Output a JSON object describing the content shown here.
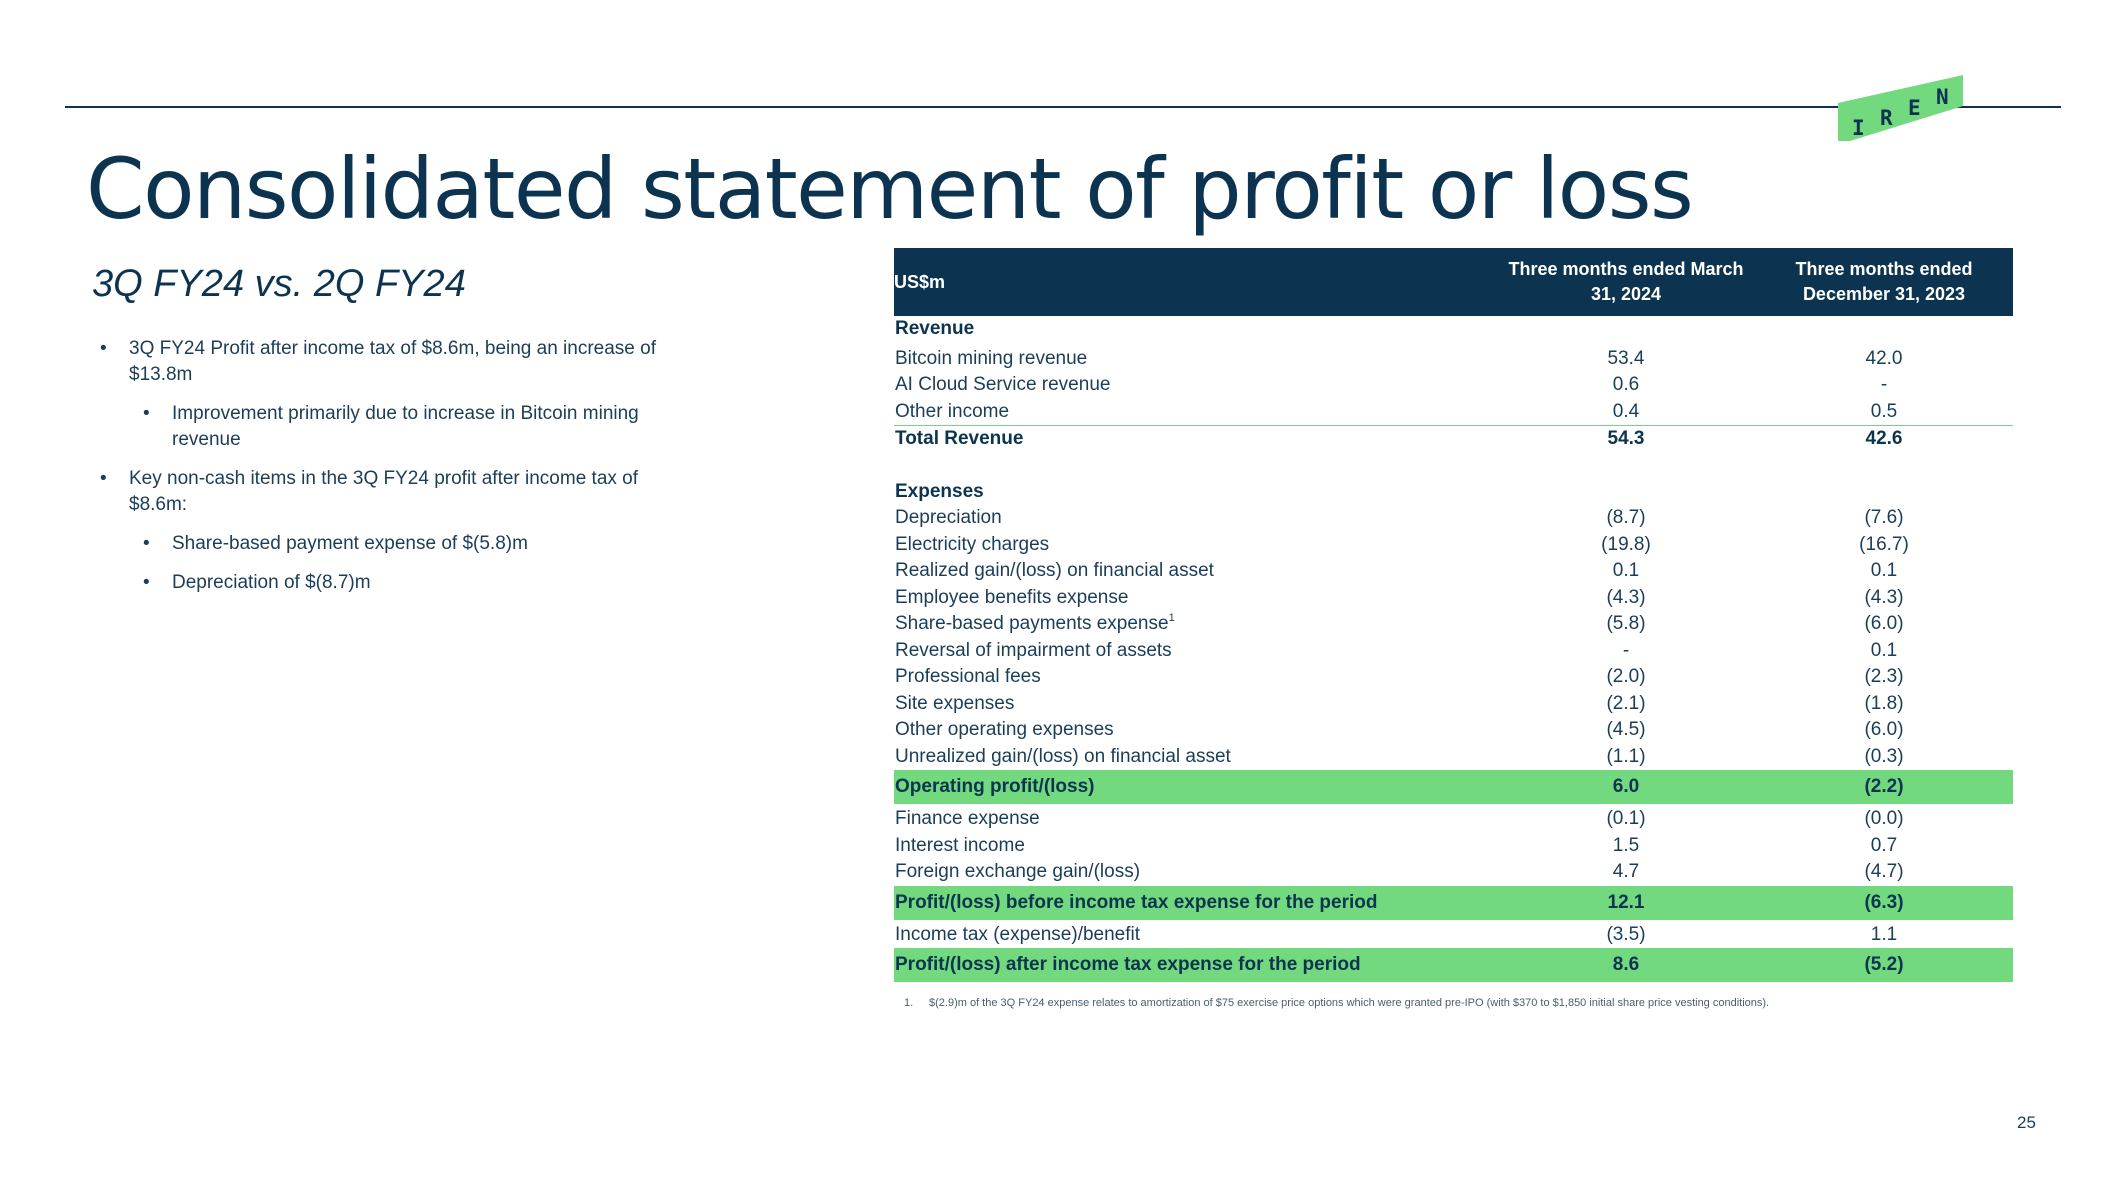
{
  "logo": {
    "letters": [
      "I",
      "R",
      "E",
      "N"
    ],
    "color": "#72d97e"
  },
  "title": "Consolidated statement of profit or loss",
  "subtitle": "3Q FY24 vs. 2Q FY24",
  "bullets": [
    {
      "text": "3Q FY24 Profit after income tax of $8.6m, being an increase of $13.8m"
    },
    {
      "text": "Improvement primarily due to increase in Bitcoin mining revenue"
    },
    {
      "text": "Key non-cash items in the 3Q FY24 profit after income tax of $8.6m:"
    },
    {
      "text": "Share-based payment expense of $(5.8)m"
    },
    {
      "text": "Depreciation of $(8.7)m"
    }
  ],
  "table": {
    "header": {
      "label": "US$m",
      "col1": "Three months ended March 31, 2024",
      "col2": "Three months ended December 31, 2023"
    },
    "revenue_section": "Revenue",
    "revenue_rows": [
      {
        "label": "Bitcoin mining revenue",
        "c1": "53.4",
        "c2": "42.0"
      },
      {
        "label": "AI Cloud Service revenue",
        "c1": "0.6",
        "c2": "-"
      },
      {
        "label": "Other income",
        "c1": "0.4",
        "c2": "0.5"
      }
    ],
    "total_revenue": {
      "label": "Total Revenue",
      "c1": "54.3",
      "c2": "42.6"
    },
    "expenses_section": "Expenses",
    "expense_rows": [
      {
        "label": "Depreciation",
        "c1": "(8.7)",
        "c2": "(7.6)"
      },
      {
        "label": "Electricity charges",
        "c1": "(19.8)",
        "c2": "(16.7)"
      },
      {
        "label": "Realized gain/(loss) on financial asset",
        "c1": "0.1",
        "c2": "0.1"
      },
      {
        "label": "Employee benefits expense",
        "c1": "(4.3)",
        "c2": "(4.3)"
      },
      {
        "label": "Share-based payments expense",
        "sup": "1",
        "c1": "(5.8)",
        "c2": "(6.0)"
      },
      {
        "label": "Reversal of impairment of assets",
        "c1": "-",
        "c2": "0.1"
      },
      {
        "label": "Professional fees",
        "c1": "(2.0)",
        "c2": "(2.3)"
      },
      {
        "label": "Site expenses",
        "c1": "(2.1)",
        "c2": "(1.8)"
      },
      {
        "label": "Other operating expenses",
        "c1": "(4.5)",
        "c2": "(6.0)"
      },
      {
        "label": "Unrealized gain/(loss) on financial asset",
        "c1": "(1.1)",
        "c2": "(0.3)"
      }
    ],
    "operating_profit": {
      "label": "Operating profit/(loss)",
      "c1": "6.0",
      "c2": "(2.2)"
    },
    "finance_rows": [
      {
        "label": "Finance expense",
        "c1": "(0.1)",
        "c2": "(0.0)"
      },
      {
        "label": "Interest income",
        "c1": "1.5",
        "c2": "0.7"
      },
      {
        "label": "Foreign exchange gain/(loss)",
        "c1": "4.7",
        "c2": "(4.7)"
      }
    ],
    "profit_before_tax": {
      "label": "Profit/(loss) before income tax expense for the period",
      "c1": "12.1",
      "c2": "(6.3)"
    },
    "income_tax": {
      "label": "Income tax (expense)/benefit",
      "c1": "(3.5)",
      "c2": "1.1"
    },
    "profit_after_tax": {
      "label": "Profit/(loss) after income tax expense for the period",
      "c1": "8.6",
      "c2": "(5.2)"
    }
  },
  "footnote": {
    "number": "1.",
    "text": "$(2.9)m of the 3Q FY24 expense relates to amortization of $75 exercise price options which were granted pre-IPO (with $370 to $1,850 initial share price vesting conditions)."
  },
  "page_number": "25",
  "colors": {
    "navy": "#0c3450",
    "highlight_green": "#72d97e",
    "text": "#1b3d57"
  }
}
